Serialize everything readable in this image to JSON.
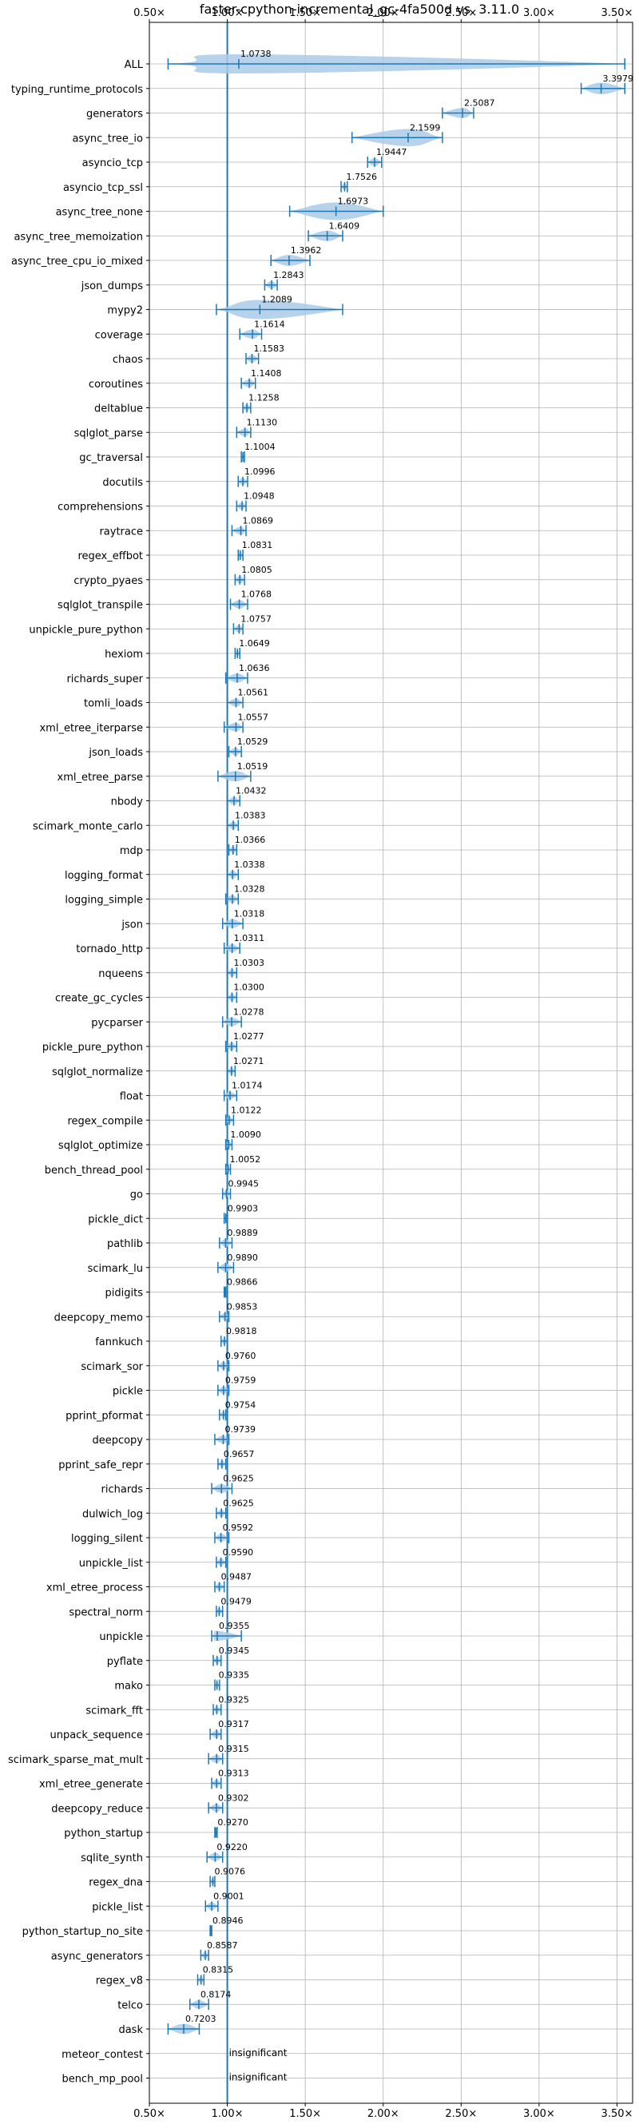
{
  "chart_data": {
    "type": "violin",
    "title": "faster-cpython-incremental_gc-4fa500d vs. 3.11.0",
    "xlabel": "",
    "ylabel": "",
    "xlim": [
      0.5,
      3.6
    ],
    "xticks": [
      0.5,
      1.0,
      1.5,
      2.0,
      2.5,
      3.0,
      3.5
    ],
    "xtick_labels": [
      "0.50×",
      "1.00×",
      "1.50×",
      "2.00×",
      "2.50×",
      "3.00×",
      "3.50×"
    ],
    "reference_line": 1.0,
    "grid": true,
    "colors": {
      "violin": "#a9cbe8",
      "line": "#1f77b4",
      "grid": "#b0b0b0",
      "text": "#000000"
    },
    "benchmarks": [
      {
        "name": "ALL",
        "label": "1.0738",
        "value": 1.0738,
        "min": 0.62,
        "max": 3.55
      },
      {
        "name": "typing_runtime_protocols",
        "label": "3.3979",
        "value": 3.3979,
        "min": 3.27,
        "max": 3.55
      },
      {
        "name": "generators",
        "label": "2.5087",
        "value": 2.5087,
        "min": 2.38,
        "max": 2.58
      },
      {
        "name": "async_tree_io",
        "label": "2.1599",
        "value": 2.1599,
        "min": 1.8,
        "max": 2.38
      },
      {
        "name": "asyncio_tcp",
        "label": "1.9447",
        "value": 1.9447,
        "min": 1.9,
        "max": 1.99
      },
      {
        "name": "asyncio_tcp_ssl",
        "label": "1.7526",
        "value": 1.7526,
        "min": 1.73,
        "max": 1.77
      },
      {
        "name": "async_tree_none",
        "label": "1.6973",
        "value": 1.6973,
        "min": 1.4,
        "max": 2.0
      },
      {
        "name": "async_tree_memoization",
        "label": "1.6409",
        "value": 1.6409,
        "min": 1.52,
        "max": 1.74
      },
      {
        "name": "async_tree_cpu_io_mixed",
        "label": "1.3962",
        "value": 1.3962,
        "min": 1.28,
        "max": 1.53
      },
      {
        "name": "json_dumps",
        "label": "1.2843",
        "value": 1.2843,
        "min": 1.24,
        "max": 1.32
      },
      {
        "name": "mypy2",
        "label": "1.2089",
        "value": 1.2089,
        "min": 0.93,
        "max": 1.74
      },
      {
        "name": "coverage",
        "label": "1.1614",
        "value": 1.1614,
        "min": 1.08,
        "max": 1.22
      },
      {
        "name": "chaos",
        "label": "1.1583",
        "value": 1.1583,
        "min": 1.12,
        "max": 1.2
      },
      {
        "name": "coroutines",
        "label": "1.1408",
        "value": 1.1408,
        "min": 1.09,
        "max": 1.18
      },
      {
        "name": "deltablue",
        "label": "1.1258",
        "value": 1.1258,
        "min": 1.1,
        "max": 1.15
      },
      {
        "name": "sqlglot_parse",
        "label": "1.1130",
        "value": 1.113,
        "min": 1.06,
        "max": 1.15
      },
      {
        "name": "gc_traversal",
        "label": "1.1004",
        "value": 1.1004,
        "min": 1.09,
        "max": 1.11
      },
      {
        "name": "docutils",
        "label": "1.0996",
        "value": 1.0996,
        "min": 1.07,
        "max": 1.13
      },
      {
        "name": "comprehensions",
        "label": "1.0948",
        "value": 1.0948,
        "min": 1.06,
        "max": 1.12
      },
      {
        "name": "raytrace",
        "label": "1.0869",
        "value": 1.0869,
        "min": 1.03,
        "max": 1.12
      },
      {
        "name": "regex_effbot",
        "label": "1.0831",
        "value": 1.0831,
        "min": 1.07,
        "max": 1.1
      },
      {
        "name": "crypto_pyaes",
        "label": "1.0805",
        "value": 1.0805,
        "min": 1.05,
        "max": 1.11
      },
      {
        "name": "sqlglot_transpile",
        "label": "1.0768",
        "value": 1.0768,
        "min": 1.02,
        "max": 1.13
      },
      {
        "name": "unpickle_pure_python",
        "label": "1.0757",
        "value": 1.0757,
        "min": 1.04,
        "max": 1.1
      },
      {
        "name": "hexiom",
        "label": "1.0649",
        "value": 1.0649,
        "min": 1.05,
        "max": 1.08
      },
      {
        "name": "richards_super",
        "label": "1.0636",
        "value": 1.0636,
        "min": 0.99,
        "max": 1.13
      },
      {
        "name": "tomli_loads",
        "label": "1.0561",
        "value": 1.0561,
        "min": 1.0,
        "max": 1.1
      },
      {
        "name": "xml_etree_iterparse",
        "label": "1.0557",
        "value": 1.0557,
        "min": 0.98,
        "max": 1.1
      },
      {
        "name": "json_loads",
        "label": "1.0529",
        "value": 1.0529,
        "min": 1.01,
        "max": 1.09
      },
      {
        "name": "xml_etree_parse",
        "label": "1.0519",
        "value": 1.0519,
        "min": 0.94,
        "max": 1.15
      },
      {
        "name": "nbody",
        "label": "1.0432",
        "value": 1.0432,
        "min": 1.0,
        "max": 1.08
      },
      {
        "name": "scimark_monte_carlo",
        "label": "1.0383",
        "value": 1.0383,
        "min": 1.0,
        "max": 1.07
      },
      {
        "name": "mdp",
        "label": "1.0366",
        "value": 1.0366,
        "min": 1.01,
        "max": 1.06
      },
      {
        "name": "logging_format",
        "label": "1.0338",
        "value": 1.0338,
        "min": 1.0,
        "max": 1.07
      },
      {
        "name": "logging_simple",
        "label": "1.0328",
        "value": 1.0328,
        "min": 0.99,
        "max": 1.07
      },
      {
        "name": "json",
        "label": "1.0318",
        "value": 1.0318,
        "min": 0.97,
        "max": 1.1
      },
      {
        "name": "tornado_http",
        "label": "1.0311",
        "value": 1.0311,
        "min": 0.98,
        "max": 1.08
      },
      {
        "name": "nqueens",
        "label": "1.0303",
        "value": 1.0303,
        "min": 1.0,
        "max": 1.06
      },
      {
        "name": "create_gc_cycles",
        "label": "1.0300",
        "value": 1.03,
        "min": 1.0,
        "max": 1.06
      },
      {
        "name": "pycparser",
        "label": "1.0278",
        "value": 1.0278,
        "min": 0.97,
        "max": 1.09
      },
      {
        "name": "pickle_pure_python",
        "label": "1.0277",
        "value": 1.0277,
        "min": 0.99,
        "max": 1.06
      },
      {
        "name": "sqlglot_normalize",
        "label": "1.0271",
        "value": 1.0271,
        "min": 1.0,
        "max": 1.05
      },
      {
        "name": "float",
        "label": "1.0174",
        "value": 1.0174,
        "min": 0.98,
        "max": 1.06
      },
      {
        "name": "regex_compile",
        "label": "1.0122",
        "value": 1.0122,
        "min": 0.99,
        "max": 1.04
      },
      {
        "name": "sqlglot_optimize",
        "label": "1.0090",
        "value": 1.009,
        "min": 0.99,
        "max": 1.03
      },
      {
        "name": "bench_thread_pool",
        "label": "1.0052",
        "value": 1.0052,
        "min": 0.99,
        "max": 1.02
      },
      {
        "name": "go",
        "label": "0.9945",
        "value": 0.9945,
        "min": 0.97,
        "max": 1.02
      },
      {
        "name": "pickle_dict",
        "label": "0.9903",
        "value": 0.9903,
        "min": 0.98,
        "max": 1.0
      },
      {
        "name": "pathlib",
        "label": "0.9889",
        "value": 0.9889,
        "min": 0.95,
        "max": 1.03
      },
      {
        "name": "scimark_lu",
        "label": "0.9890",
        "value": 0.989,
        "min": 0.94,
        "max": 1.04
      },
      {
        "name": "pidigits",
        "label": "0.9866",
        "value": 0.9866,
        "min": 0.98,
        "max": 0.99
      },
      {
        "name": "deepcopy_memo",
        "label": "0.9853",
        "value": 0.9853,
        "min": 0.95,
        "max": 1.01
      },
      {
        "name": "fannkuch",
        "label": "0.9818",
        "value": 0.9818,
        "min": 0.96,
        "max": 1.0
      },
      {
        "name": "scimark_sor",
        "label": "0.9760",
        "value": 0.976,
        "min": 0.94,
        "max": 1.01
      },
      {
        "name": "pickle",
        "label": "0.9759",
        "value": 0.9759,
        "min": 0.94,
        "max": 1.01
      },
      {
        "name": "pprint_pformat",
        "label": "0.9754",
        "value": 0.9754,
        "min": 0.95,
        "max": 0.99
      },
      {
        "name": "deepcopy",
        "label": "0.9739",
        "value": 0.9739,
        "min": 0.92,
        "max": 1.01
      },
      {
        "name": "pprint_safe_repr",
        "label": "0.9657",
        "value": 0.9657,
        "min": 0.94,
        "max": 0.99
      },
      {
        "name": "richards",
        "label": "0.9625",
        "value": 0.9625,
        "min": 0.9,
        "max": 1.03
      },
      {
        "name": "dulwich_log",
        "label": "0.9625",
        "value": 0.9625,
        "min": 0.93,
        "max": 0.99
      },
      {
        "name": "logging_silent",
        "label": "0.9592",
        "value": 0.9592,
        "min": 0.92,
        "max": 1.01
      },
      {
        "name": "unpickle_list",
        "label": "0.9590",
        "value": 0.959,
        "min": 0.93,
        "max": 0.99
      },
      {
        "name": "xml_etree_process",
        "label": "0.9487",
        "value": 0.9487,
        "min": 0.92,
        "max": 0.98
      },
      {
        "name": "spectral_norm",
        "label": "0.9479",
        "value": 0.9479,
        "min": 0.93,
        "max": 0.97
      },
      {
        "name": "unpickle",
        "label": "0.9355",
        "value": 0.9355,
        "min": 0.9,
        "max": 1.09
      },
      {
        "name": "pyflate",
        "label": "0.9345",
        "value": 0.9345,
        "min": 0.91,
        "max": 0.96
      },
      {
        "name": "mako",
        "label": "0.9335",
        "value": 0.9335,
        "min": 0.92,
        "max": 0.95
      },
      {
        "name": "scimark_fft",
        "label": "0.9325",
        "value": 0.9325,
        "min": 0.91,
        "max": 0.96
      },
      {
        "name": "unpack_sequence",
        "label": "0.9317",
        "value": 0.9317,
        "min": 0.89,
        "max": 0.96
      },
      {
        "name": "scimark_sparse_mat_mult",
        "label": "0.9315",
        "value": 0.9315,
        "min": 0.88,
        "max": 0.97
      },
      {
        "name": "xml_etree_generate",
        "label": "0.9313",
        "value": 0.9313,
        "min": 0.9,
        "max": 0.96
      },
      {
        "name": "deepcopy_reduce",
        "label": "0.9302",
        "value": 0.9302,
        "min": 0.88,
        "max": 0.97
      },
      {
        "name": "python_startup",
        "label": "0.9270",
        "value": 0.927,
        "min": 0.92,
        "max": 0.935
      },
      {
        "name": "sqlite_synth",
        "label": "0.9220",
        "value": 0.922,
        "min": 0.87,
        "max": 0.97
      },
      {
        "name": "regex_dna",
        "label": "0.9076",
        "value": 0.9076,
        "min": 0.89,
        "max": 0.92
      },
      {
        "name": "pickle_list",
        "label": "0.9001",
        "value": 0.9001,
        "min": 0.86,
        "max": 0.94
      },
      {
        "name": "python_startup_no_site",
        "label": "0.8946",
        "value": 0.8946,
        "min": 0.89,
        "max": 0.9
      },
      {
        "name": "async_generators",
        "label": "0.8587",
        "value": 0.8587,
        "min": 0.83,
        "max": 0.88
      },
      {
        "name": "regex_v8",
        "label": "0.8315",
        "value": 0.8315,
        "min": 0.81,
        "max": 0.85
      },
      {
        "name": "telco",
        "label": "0.8174",
        "value": 0.8174,
        "min": 0.76,
        "max": 0.88
      },
      {
        "name": "dask",
        "label": "0.7203",
        "value": 0.7203,
        "min": 0.62,
        "max": 0.82
      },
      {
        "name": "meteor_contest",
        "label": "insignificant",
        "value": null,
        "min": null,
        "max": null
      },
      {
        "name": "bench_mp_pool",
        "label": "insignificant",
        "value": null,
        "min": null,
        "max": null
      }
    ]
  }
}
